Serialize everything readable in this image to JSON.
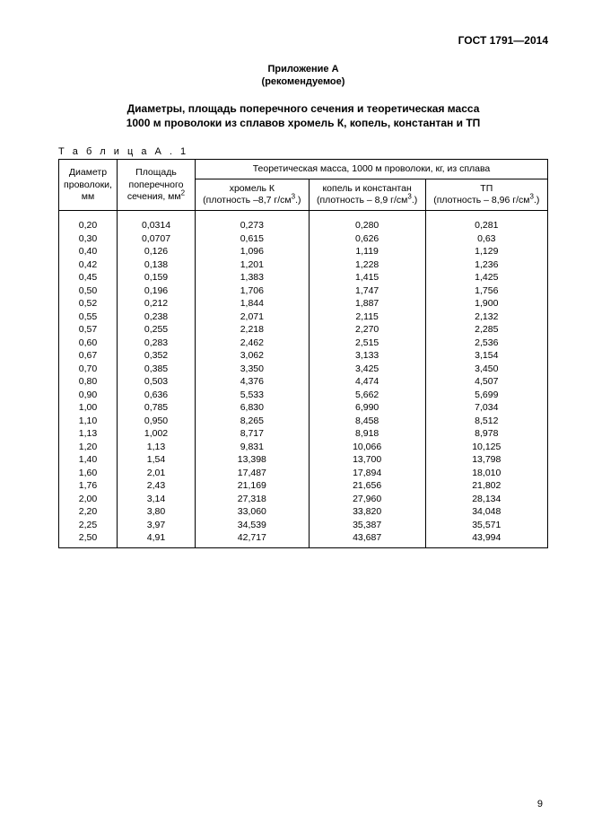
{
  "doc_code": "ГОСТ 1791—2014",
  "appendix_label_line1": "Приложение А",
  "appendix_label_line2": "(рекомендуемое)",
  "title_line1": "Диаметры, площадь поперечного сечения  и  теоретическая масса",
  "title_line2": "1000 м  проволоки из сплавов хромель К, копель, константан и  ТП",
  "table_label": "Т а б л и ц а   А . 1",
  "header": {
    "diameter": "Диаметр проволоки, мм",
    "area_line1": "Площадь",
    "area_line2": "поперечного",
    "area_line3": "сечения, мм",
    "mass_group": "Теоретическая масса, 1000 м проволоки, кг, из сплава",
    "chromel_line1": "хромель К",
    "chromel_line2": "(плотность –8,7 г/см",
    "kopel_line1": "копель и константан",
    "kopel_line2": "(плотность – 8,9 г/см",
    "tp_line1": "ТП",
    "tp_line2": "(плотность – 8,96 г/см"
  },
  "rows": [
    [
      "0,20",
      "0,0314",
      "0,273",
      "0,280",
      "0,281"
    ],
    [
      "0,30",
      "0,0707",
      "0,615",
      "0,626",
      "0,63"
    ],
    [
      "0,40",
      "0,126",
      "1,096",
      "1,119",
      "1,129"
    ],
    [
      "0,42",
      "0,138",
      "1,201",
      "1,228",
      "1,236"
    ],
    [
      "0,45",
      "0,159",
      "1,383",
      "1,415",
      "1,425"
    ],
    [
      "0,50",
      "0,196",
      "1,706",
      "1,747",
      "1,756"
    ],
    [
      "0,52",
      "0,212",
      "1,844",
      "1,887",
      "1,900"
    ],
    [
      "0,55",
      "0,238",
      "2,071",
      "2,115",
      "2,132"
    ],
    [
      "0,57",
      "0,255",
      "2,218",
      "2,270",
      "2,285"
    ],
    [
      "0,60",
      "0,283",
      "2,462",
      "2,515",
      "2,536"
    ],
    [
      "0,67",
      "0,352",
      "3,062",
      "3,133",
      "3,154"
    ],
    [
      "0,70",
      "0,385",
      "3,350",
      "3,425",
      "3,450"
    ],
    [
      "0,80",
      "0,503",
      "4,376",
      "4,474",
      "4,507"
    ],
    [
      "0,90",
      "0,636",
      "5,533",
      "5,662",
      "5,699"
    ],
    [
      "1,00",
      "0,785",
      "6,830",
      "6,990",
      "7,034"
    ],
    [
      "1,10",
      "0,950",
      "8,265",
      "8,458",
      "8,512"
    ],
    [
      "1,13",
      "1,002",
      "8,717",
      "8,918",
      "8,978"
    ],
    [
      "1,20",
      "1,13",
      "9,831",
      "10,066",
      "10,125"
    ],
    [
      "1,40",
      "1,54",
      "13,398",
      "13,700",
      "13,798"
    ],
    [
      "1,60",
      "2,01",
      "17,487",
      "17,894",
      "18,010"
    ],
    [
      "1,76",
      "2,43",
      "21,169",
      "21,656",
      "21,802"
    ],
    [
      "2,00",
      "3,14",
      "27,318",
      "27,960",
      "28,134"
    ],
    [
      "2,20",
      "3,80",
      "33,060",
      "33,820",
      "34,048"
    ],
    [
      "2,25",
      "3,97",
      "34,539",
      "35,387",
      "35,571"
    ],
    [
      "2,50",
      "4,91",
      "42,717",
      "43,687",
      "43,994"
    ]
  ],
  "page_number": "9"
}
